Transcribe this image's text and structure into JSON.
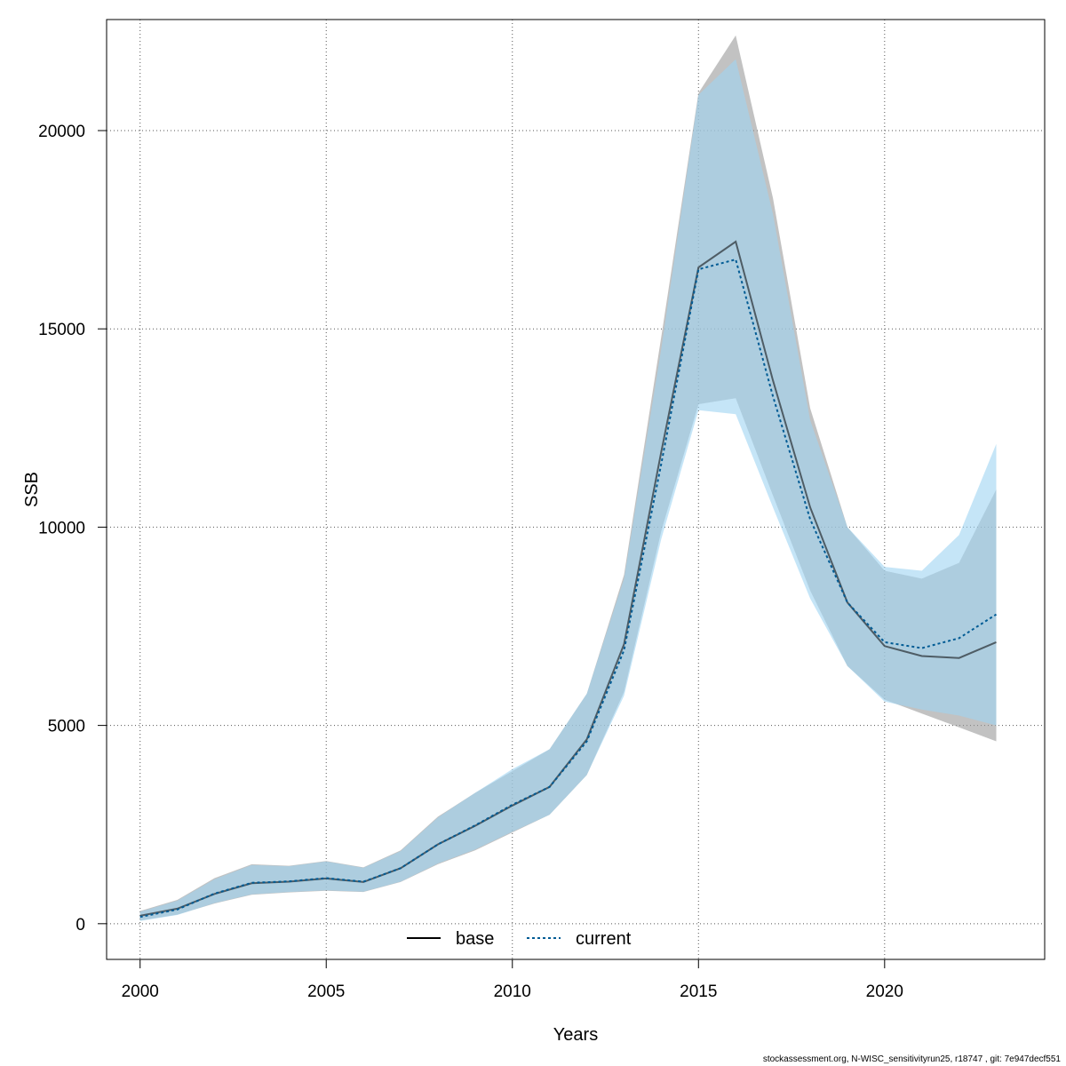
{
  "chart_data": {
    "type": "line",
    "xlabel": "Years",
    "ylabel": "SSB",
    "xlim": [
      1999.1,
      2024.3
    ],
    "ylim": [
      -900,
      22800
    ],
    "x_ticks": [
      2000,
      2005,
      2010,
      2015,
      2020
    ],
    "y_ticks": [
      0,
      5000,
      10000,
      15000,
      20000
    ],
    "grid": true,
    "legend_position": "bottom-center",
    "x": [
      2000,
      2001,
      2002,
      2003,
      2004,
      2005,
      2006,
      2007,
      2008,
      2009,
      2010,
      2011,
      2012,
      2013,
      2014,
      2015,
      2016,
      2017,
      2018,
      2019,
      2020,
      2021,
      2022,
      2023
    ],
    "series": [
      {
        "name": "base",
        "color": "#000000",
        "line_style": "solid",
        "band_color": "#999999",
        "values": [
          200,
          380,
          750,
          1020,
          1060,
          1140,
          1050,
          1400,
          2000,
          2470,
          2980,
          3450,
          4650,
          7050,
          11900,
          16550,
          17200,
          13700,
          10500,
          8100,
          7000,
          6750,
          6700,
          7100
        ],
        "lower": [
          80,
          230,
          510,
          730,
          790,
          830,
          800,
          1050,
          1500,
          1850,
          2300,
          2750,
          3750,
          5850,
          9900,
          13100,
          13250,
          10800,
          8400,
          6500,
          5650,
          5300,
          4950,
          4600
        ],
        "upper": [
          320,
          600,
          1150,
          1500,
          1460,
          1580,
          1420,
          1850,
          2700,
          3300,
          3850,
          4400,
          5800,
          8800,
          14800,
          20950,
          22400,
          18300,
          13000,
          10000,
          8900,
          8700,
          9100,
          10950
        ]
      },
      {
        "name": "current",
        "color": "#005B94",
        "line_style": "dashed",
        "band_color": "#9FD3F2",
        "values": [
          170,
          360,
          760,
          1030,
          1070,
          1150,
          1060,
          1400,
          2000,
          2480,
          3000,
          3450,
          4600,
          6900,
          11600,
          16500,
          16750,
          13300,
          10200,
          8100,
          7100,
          6950,
          7200,
          7800
        ],
        "lower": [
          70,
          220,
          520,
          740,
          800,
          840,
          810,
          1060,
          1520,
          1870,
          2320,
          2750,
          3750,
          5750,
          9700,
          12950,
          12850,
          10500,
          8200,
          6500,
          5600,
          5400,
          5250,
          5000
        ],
        "upper": [
          300,
          580,
          1120,
          1480,
          1450,
          1570,
          1410,
          1830,
          2680,
          3300,
          3900,
          4400,
          5800,
          8700,
          14500,
          20900,
          21800,
          17900,
          12700,
          10000,
          9000,
          8900,
          9800,
          12100
        ]
      }
    ]
  },
  "footer_text": "stockassessment.org, N-WISC_sensitivityrun25, r18747 , git: 7e947decf551"
}
